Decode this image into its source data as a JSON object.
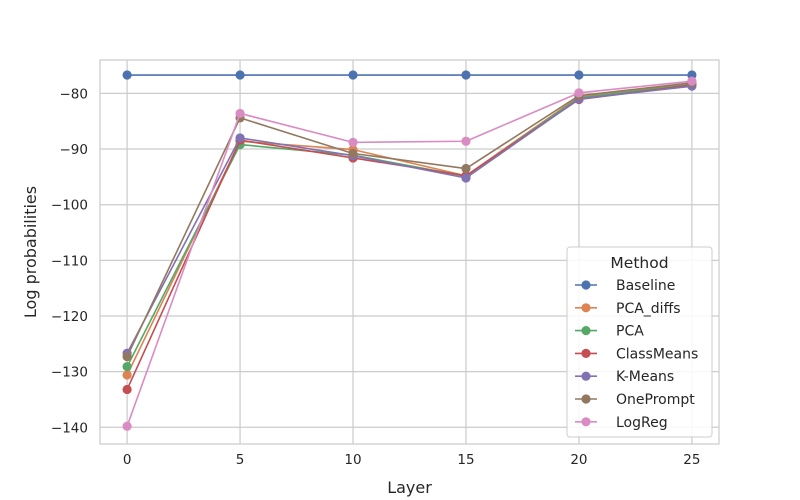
{
  "chart_data": {
    "type": "line",
    "title": "",
    "xlabel": "Layer",
    "ylabel": "Log probabilities",
    "x": [
      0,
      5,
      10,
      15,
      20,
      25
    ],
    "x_ticks": [
      "0",
      "5",
      "10",
      "15",
      "20",
      "25"
    ],
    "y_ticks": [
      "−80",
      "−90",
      "−100",
      "−110",
      "−120",
      "−130",
      "−140"
    ],
    "y_tick_values": [
      -80,
      -90,
      -100,
      -110,
      -120,
      -130,
      -140
    ],
    "xlim": [
      -1.2,
      26.2
    ],
    "ylim": [
      -143,
      -74
    ],
    "grid": true,
    "legend": {
      "title": "Method",
      "placement": "lower right"
    },
    "series": [
      {
        "name": "Baseline",
        "color": "#4c72b0",
        "values": [
          -76.7,
          -76.7,
          -76.7,
          -76.7,
          -76.7,
          -76.7
        ]
      },
      {
        "name": "PCA_diffs",
        "color": "#dd8452",
        "values": [
          -130.6,
          -88.6,
          -90.1,
          -94.8,
          -80.6,
          -78.2
        ]
      },
      {
        "name": "PCA",
        "color": "#55a868",
        "values": [
          -129.1,
          -89.2,
          -91.1,
          -94.9,
          -80.8,
          -78.4
        ]
      },
      {
        "name": "ClassMeans",
        "color": "#c44e52",
        "values": [
          -133.2,
          -88.4,
          -91.6,
          -94.8,
          -81.1,
          -78.5
        ]
      },
      {
        "name": "K-Means",
        "color": "#8172b3",
        "values": [
          -126.7,
          -88.0,
          -91.2,
          -95.2,
          -81.0,
          -78.7
        ]
      },
      {
        "name": "OnePrompt",
        "color": "#937860",
        "values": [
          -127.3,
          -84.4,
          -90.8,
          -93.5,
          -80.4,
          -78.1
        ]
      },
      {
        "name": "LogReg",
        "color": "#da8bc3",
        "values": [
          -139.8,
          -83.6,
          -88.8,
          -88.6,
          -79.9,
          -77.8
        ]
      }
    ]
  }
}
